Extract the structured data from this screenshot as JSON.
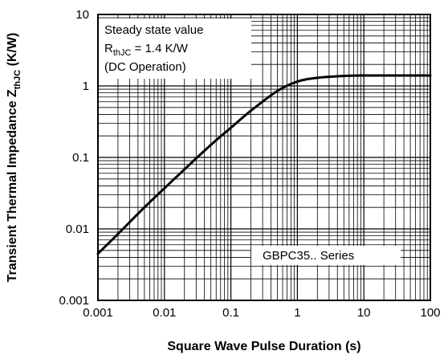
{
  "chart_data": {
    "type": "line",
    "title": "",
    "xlabel": "Square Wave Pulse Duration (s)",
    "ylabel": {
      "main": "Transient Thermal Impedance Z",
      "sub": "thJC",
      "unit": " (K/W)"
    },
    "x_scale": "log",
    "y_scale": "log",
    "xlim": [
      0.001,
      100
    ],
    "ylim": [
      0.001,
      10
    ],
    "x_ticks": [
      "0.001",
      "0.01",
      "0.1",
      "1",
      "10",
      "100"
    ],
    "y_ticks": [
      "0.001",
      "0.01",
      "0.1",
      "1",
      "10"
    ],
    "grid": true,
    "series": [
      {
        "name": "GBPC35.. Series",
        "color": "#000000",
        "x": [
          0.001,
          0.002,
          0.005,
          0.01,
          0.02,
          0.05,
          0.1,
          0.2,
          0.5,
          1,
          2,
          5,
          10,
          20,
          50,
          100
        ],
        "y": [
          0.0045,
          0.0085,
          0.02,
          0.037,
          0.068,
          0.15,
          0.26,
          0.45,
          0.85,
          1.15,
          1.3,
          1.38,
          1.4,
          1.4,
          1.4,
          1.4
        ]
      }
    ],
    "annotations": {
      "steady_state": {
        "line1": "Steady state value",
        "line2_main": "R",
        "line2_sub": "thJC",
        "line2_rest": " = 1.4 K/W",
        "line3": "(DC Operation)"
      },
      "series_label": "GBPC35.. Series"
    }
  }
}
